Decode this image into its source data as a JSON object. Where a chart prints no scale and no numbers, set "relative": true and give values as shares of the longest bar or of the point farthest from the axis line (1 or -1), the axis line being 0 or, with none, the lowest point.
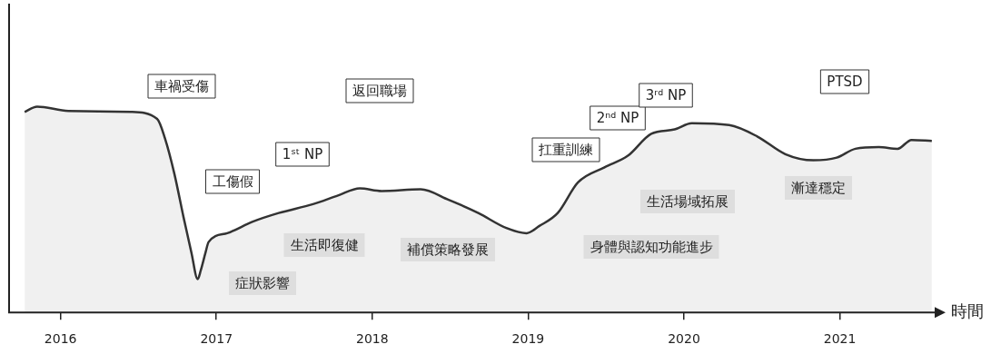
{
  "chart_data": {
    "type": "area",
    "relative": true,
    "xlabel": "時間",
    "color": "#333333",
    "x": [
      2015.77,
      2015.85,
      2016.05,
      2016.45,
      2016.62,
      2016.67,
      2016.73,
      2016.79,
      2016.84,
      2016.88,
      2016.9,
      2016.93,
      2016.95,
      2017.07,
      2017.23,
      2017.4,
      2017.62,
      2017.78,
      2017.92,
      2018.06,
      2018.31,
      2018.49,
      2018.68,
      2018.86,
      2018.99,
      2019.07,
      2019.19,
      2019.32,
      2019.49,
      2019.64,
      2019.79,
      2019.94,
      2020.05,
      2020.29,
      2020.47,
      2020.65,
      2020.83,
      2020.98,
      2021.1,
      2021.25,
      2021.37,
      2021.46,
      2021.59
    ],
    "values": [
      0.974,
      1,
      0.979,
      0.974,
      0.94,
      0.846,
      0.675,
      0.46,
      0.29,
      0.162,
      0.205,
      0.29,
      0.342,
      0.385,
      0.44,
      0.483,
      0.526,
      0.568,
      0.603,
      0.59,
      0.598,
      0.547,
      0.483,
      0.41,
      0.385,
      0.419,
      0.483,
      0.632,
      0.705,
      0.761,
      0.868,
      0.889,
      0.919,
      0.91,
      0.855,
      0.769,
      0.739,
      0.752,
      0.795,
      0.803,
      0.795,
      0.838,
      0.833
    ],
    "xlim": [
      2015.67,
      2021.62
    ],
    "xticks": [
      2016,
      2017,
      2018,
      2019,
      2020,
      2021
    ],
    "grid": false,
    "legend": false,
    "marker": "none",
    "line_style": "solid",
    "annotations": [
      "車禍受傷",
      "工傷假",
      "1ˢᵗ NP",
      "返回職場",
      "扛重訓練",
      "2ⁿᵈ NP",
      "3ʳᵈ NP",
      "PTSD",
      "症狀影響",
      "生活即復健",
      "補償策略發展",
      "身體與認知功能進步",
      "生活場域拓展",
      "漸達穩定"
    ]
  }
}
